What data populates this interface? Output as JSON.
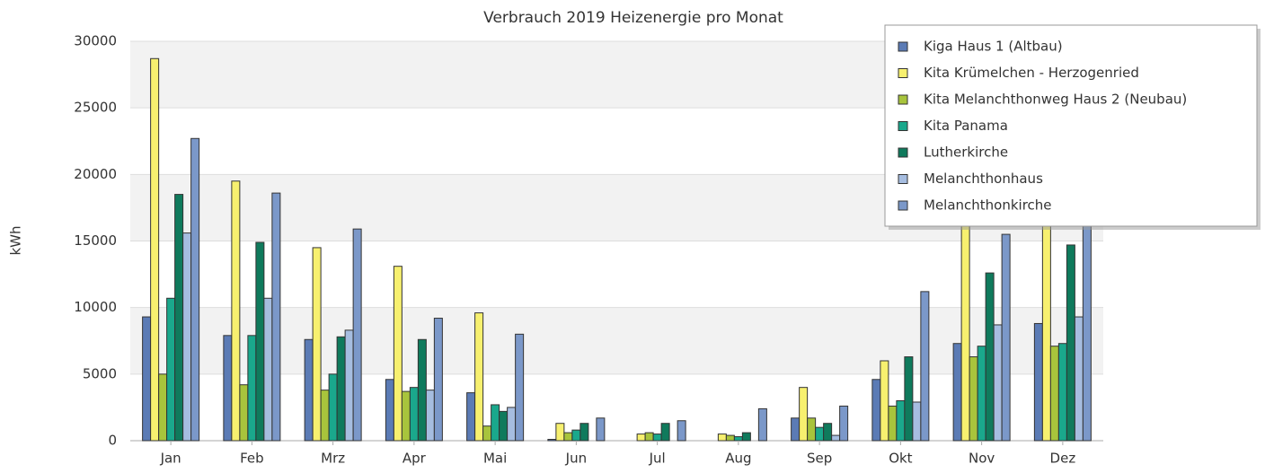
{
  "chart_data": {
    "type": "bar",
    "title": "Verbrauch 2019 Heizenergie pro Monat",
    "y_label": "kWh",
    "categories": [
      "Jan",
      "Feb",
      "Mrz",
      "Apr",
      "Mai",
      "Jun",
      "Jul",
      "Aug",
      "Sep",
      "Okt",
      "Nov",
      "Dez"
    ],
    "series": [
      {
        "name": "Kiga Haus 1 (Altbau)",
        "color": "#5b7bb5",
        "values": [
          9300,
          7900,
          7600,
          4600,
          3600,
          100,
          0,
          0,
          1700,
          4600,
          7300,
          8800
        ]
      },
      {
        "name": "Kita Krümelchen - Herzogenried",
        "color": "#f7f06f",
        "values": [
          28700,
          19500,
          14500,
          13100,
          9600,
          1300,
          500,
          500,
          4000,
          6000,
          17000,
          17500
        ]
      },
      {
        "name": "Kita Melanchthonweg Haus 2 (Neubau)",
        "color": "#a8c43c",
        "values": [
          5000,
          4200,
          3800,
          3700,
          1100,
          600,
          600,
          400,
          1700,
          2600,
          6300,
          7100
        ]
      },
      {
        "name": "Kita Panama",
        "color": "#1aa88c",
        "values": [
          10700,
          7900,
          5000,
          4000,
          2700,
          800,
          500,
          300,
          1000,
          3000,
          7100,
          7300
        ]
      },
      {
        "name": "Lutherkirche",
        "color": "#0f7a5c",
        "values": [
          18500,
          14900,
          7800,
          7600,
          2200,
          1300,
          1300,
          600,
          1300,
          6300,
          12600,
          14700
        ]
      },
      {
        "name": "Melanchthonhaus",
        "color": "#a6bde0",
        "values": [
          15600,
          10700,
          8300,
          3800,
          2500,
          0,
          0,
          0,
          400,
          2900,
          8700,
          9300
        ]
      },
      {
        "name": "Melanchthonkirche",
        "color": "#7b98c9",
        "values": [
          22700,
          18600,
          15900,
          9200,
          8000,
          1700,
          1500,
          2400,
          2600,
          11200,
          15500,
          19500
        ]
      }
    ],
    "ylim": [
      0,
      30000
    ],
    "yticks": [
      0,
      5000,
      10000,
      15000,
      20000,
      25000,
      30000
    ],
    "grid": true,
    "legend": "top-right"
  }
}
